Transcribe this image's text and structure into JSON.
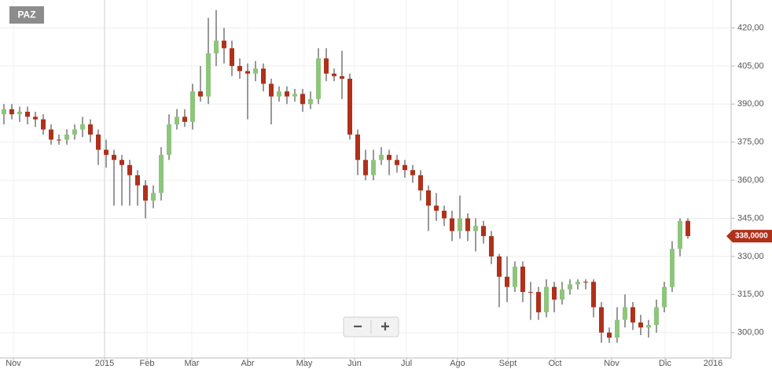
{
  "chart_data": {
    "type": "candlestick",
    "title": "PAZ",
    "up_color": "#8dc57c",
    "down_color": "#b0301a",
    "grid": true,
    "categories": [
      null,
      null,
      null,
      null,
      null,
      null,
      null,
      null,
      null,
      null,
      null,
      null,
      null,
      null,
      null,
      null,
      null,
      null,
      null,
      null,
      null,
      null,
      null,
      null,
      null,
      null,
      null,
      null,
      null,
      null,
      null,
      null,
      null,
      null,
      null,
      null,
      null,
      null,
      null,
      null,
      null,
      null,
      null,
      null,
      null,
      null,
      null,
      null,
      null,
      null,
      null,
      null,
      null,
      null,
      null,
      null,
      null,
      null,
      null,
      null,
      null,
      null,
      null,
      null,
      null,
      null,
      null,
      null,
      null,
      null,
      null,
      null,
      null,
      null,
      null,
      null,
      null,
      null,
      null,
      null,
      null,
      null,
      null,
      null,
      null,
      null,
      null,
      null
    ],
    "open": [
      386,
      388,
      386,
      387,
      385,
      384,
      380,
      376,
      376,
      378,
      380,
      382,
      378,
      372,
      370,
      368,
      366,
      362,
      358,
      352,
      355,
      370,
      382,
      385,
      383,
      395,
      393,
      410,
      415,
      412,
      405,
      403,
      402,
      404,
      398,
      393,
      395,
      393,
      394,
      390,
      392,
      408,
      402,
      401,
      400,
      378,
      368,
      362,
      368,
      370,
      368,
      366,
      364,
      362,
      356,
      350,
      348,
      345,
      340,
      345,
      340,
      342,
      338,
      330,
      322,
      318,
      326,
      316,
      316,
      308,
      318,
      313,
      317,
      319,
      320,
      320,
      310,
      300,
      298,
      305,
      310,
      304,
      302,
      303,
      310,
      318,
      333,
      344
    ],
    "high": [
      390,
      390,
      389,
      389,
      387,
      386,
      382,
      378,
      380,
      382,
      385,
      384,
      380,
      376,
      372,
      370,
      368,
      364,
      360,
      358,
      373,
      386,
      388,
      388,
      398,
      405,
      424,
      427,
      420,
      415,
      408,
      406,
      407,
      406,
      400,
      397,
      397,
      396,
      396,
      395,
      412,
      412,
      404,
      411,
      402,
      380,
      372,
      372,
      373,
      372,
      370,
      368,
      366,
      364,
      358,
      355,
      350,
      348,
      354,
      347,
      345,
      344,
      340,
      331,
      330,
      328,
      328,
      320,
      318,
      321,
      320,
      320,
      321,
      321,
      321,
      321,
      312,
      302,
      310,
      315,
      312,
      307,
      305,
      313,
      320,
      336,
      345,
      345
    ],
    "low": [
      382,
      384,
      383,
      382,
      381,
      378,
      374,
      374,
      374,
      376,
      377,
      375,
      366,
      365,
      350,
      350,
      350,
      350,
      345,
      349,
      352,
      368,
      380,
      381,
      380,
      391,
      390,
      405,
      406,
      401,
      400,
      384,
      399,
      395,
      382,
      391,
      390,
      391,
      387,
      388,
      390,
      399,
      399,
      392,
      376,
      362,
      360,
      360,
      366,
      362,
      363,
      361,
      359,
      352,
      340,
      344,
      342,
      336,
      337,
      336,
      332,
      335,
      327,
      310,
      312,
      316,
      312,
      305,
      305,
      306,
      308,
      311,
      315,
      317,
      317,
      306,
      296,
      296,
      296,
      302,
      301,
      299,
      298,
      300,
      308,
      316,
      330,
      337
    ],
    "close": [
      388,
      386,
      387,
      385,
      384,
      380,
      376,
      376,
      378,
      380,
      382,
      378,
      372,
      370,
      368,
      366,
      362,
      358,
      352,
      355,
      370,
      382,
      385,
      383,
      395,
      393,
      410,
      415,
      412,
      405,
      403,
      402,
      404,
      398,
      393,
      395,
      393,
      394,
      390,
      392,
      408,
      402,
      401,
      400,
      378,
      368,
      362,
      368,
      370,
      368,
      366,
      364,
      362,
      356,
      350,
      348,
      345,
      340,
      345,
      340,
      342,
      338,
      330,
      322,
      318,
      326,
      316,
      316,
      308,
      318,
      313,
      317,
      319,
      320,
      320,
      310,
      300,
      298,
      305,
      310,
      304,
      302,
      303,
      310,
      318,
      333,
      344,
      338
    ],
    "xlim": [
      0,
      93
    ],
    "xticks": [
      {
        "value": 1.7,
        "label": "Nov"
      },
      {
        "value": 13.3,
        "label": "2015"
      },
      {
        "value": 18.7,
        "label": "Feb"
      },
      {
        "value": 24.4,
        "label": "Mar"
      },
      {
        "value": 31.5,
        "label": "Abr"
      },
      {
        "value": 38.7,
        "label": "May"
      },
      {
        "value": 45.1,
        "label": "Jun"
      },
      {
        "value": 51.7,
        "label": "Jul"
      },
      {
        "value": 58.2,
        "label": "Ago"
      },
      {
        "value": 64.6,
        "label": "Sept"
      },
      {
        "value": 70.6,
        "label": "Oct"
      },
      {
        "value": 77.8,
        "label": "Nov"
      },
      {
        "value": 84.6,
        "label": "Dic"
      },
      {
        "value": 90.7,
        "label": "2016"
      }
    ],
    "ylim": [
      290,
      431
    ],
    "yticks": [
      {
        "value": 300,
        "label": "300,00"
      },
      {
        "value": 315,
        "label": "315,00"
      },
      {
        "value": 330,
        "label": "330,00"
      },
      {
        "value": 345,
        "label": "345,00"
      },
      {
        "value": 360,
        "label": "360,00"
      },
      {
        "value": 375,
        "label": "375,00"
      },
      {
        "value": 390,
        "label": "390,00"
      },
      {
        "value": 405,
        "label": "405,00"
      },
      {
        "value": 420,
        "label": "420,00"
      }
    ],
    "last_price": {
      "value": 338,
      "label": "338,0000"
    },
    "zoom_controls": [
      "−",
      "+"
    ]
  }
}
